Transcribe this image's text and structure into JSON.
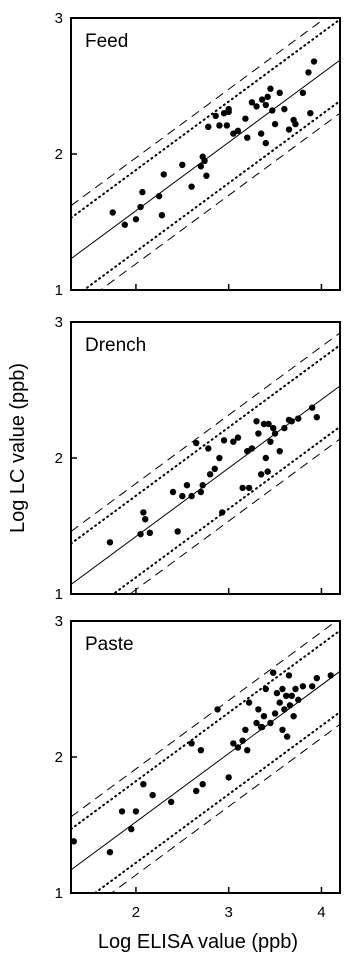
{
  "figure": {
    "ylabel": "Log LC value (ppb)",
    "xlabel": "Log ELISA value (ppb)"
  },
  "chart_data": [
    {
      "type": "scatter",
      "title": "Feed",
      "xlim": [
        1.3,
        4.2
      ],
      "ylim": [
        1,
        3
      ],
      "xticks": [
        2,
        3,
        4
      ],
      "yticks": [
        1,
        2,
        3
      ],
      "yticklabels": [
        "1",
        "2",
        "3"
      ],
      "xticklabels": [],
      "points": [
        [
          1.75,
          1.57
        ],
        [
          1.88,
          1.48
        ],
        [
          2.0,
          1.52
        ],
        [
          2.05,
          1.61
        ],
        [
          2.07,
          1.72
        ],
        [
          2.25,
          1.69
        ],
        [
          2.28,
          1.55
        ],
        [
          2.3,
          1.85
        ],
        [
          2.5,
          1.92
        ],
        [
          2.6,
          1.76
        ],
        [
          2.7,
          1.91
        ],
        [
          2.72,
          1.98
        ],
        [
          2.74,
          1.95
        ],
        [
          2.76,
          1.84
        ],
        [
          2.78,
          2.2
        ],
        [
          2.86,
          2.28
        ],
        [
          2.9,
          2.21
        ],
        [
          2.95,
          2.3
        ],
        [
          2.98,
          2.21
        ],
        [
          3.0,
          2.33
        ],
        [
          3.05,
          2.15
        ],
        [
          3.1,
          2.17
        ],
        [
          3.18,
          2.26
        ],
        [
          3.2,
          2.12
        ],
        [
          3.3,
          2.35
        ],
        [
          3.35,
          2.15
        ],
        [
          3.36,
          2.4
        ],
        [
          3.4,
          2.08
        ],
        [
          3.42,
          2.42
        ],
        [
          3.45,
          2.48
        ],
        [
          3.47,
          2.32
        ],
        [
          3.5,
          2.22
        ],
        [
          3.55,
          2.45
        ],
        [
          3.6,
          2.33
        ],
        [
          3.65,
          2.18
        ],
        [
          3.7,
          2.25
        ],
        [
          3.72,
          2.22
        ],
        [
          3.8,
          2.45
        ],
        [
          3.86,
          2.6
        ],
        [
          3.88,
          2.3
        ],
        [
          3.92,
          2.68
        ],
        [
          3.4,
          2.36
        ],
        [
          3.25,
          2.38
        ],
        [
          3.0,
          2.31
        ]
      ],
      "regression_line": [
        [
          1.3,
          1.23
        ],
        [
          4.2,
          2.69
        ]
      ],
      "inner_bands": [
        [
          [
            1.3,
            1.53
          ],
          [
            4.2,
            2.99
          ]
        ],
        [
          [
            1.3,
            0.93
          ],
          [
            4.2,
            2.39
          ]
        ]
      ],
      "outer_bands": [
        [
          [
            1.3,
            1.62
          ],
          [
            4.2,
            3.08
          ]
        ],
        [
          [
            1.3,
            0.84
          ],
          [
            4.2,
            2.3
          ]
        ]
      ]
    },
    {
      "type": "scatter",
      "title": "Drench",
      "xlim": [
        1.3,
        4.2
      ],
      "ylim": [
        1,
        3
      ],
      "xticks": [
        2,
        3,
        4
      ],
      "yticks": [
        1,
        2,
        3
      ],
      "yticklabels": [
        "1",
        "2",
        "3"
      ],
      "xticklabels": [],
      "points": [
        [
          1.72,
          1.38
        ],
        [
          2.05,
          1.44
        ],
        [
          2.08,
          1.6
        ],
        [
          2.1,
          1.55
        ],
        [
          2.15,
          1.45
        ],
        [
          2.4,
          1.75
        ],
        [
          2.45,
          1.46
        ],
        [
          2.5,
          1.72
        ],
        [
          2.55,
          1.8
        ],
        [
          2.6,
          1.72
        ],
        [
          2.65,
          2.11
        ],
        [
          2.7,
          1.75
        ],
        [
          2.72,
          1.8
        ],
        [
          2.78,
          2.07
        ],
        [
          2.8,
          1.88
        ],
        [
          2.85,
          1.92
        ],
        [
          2.9,
          2.0
        ],
        [
          2.93,
          1.6
        ],
        [
          2.95,
          2.13
        ],
        [
          3.05,
          2.12
        ],
        [
          3.1,
          2.15
        ],
        [
          3.15,
          1.78
        ],
        [
          3.2,
          2.05
        ],
        [
          3.22,
          1.78
        ],
        [
          3.25,
          2.07
        ],
        [
          3.3,
          2.27
        ],
        [
          3.32,
          2.18
        ],
        [
          3.35,
          1.88
        ],
        [
          3.38,
          2.25
        ],
        [
          3.4,
          2.0
        ],
        [
          3.42,
          1.9
        ],
        [
          3.43,
          2.25
        ],
        [
          3.45,
          2.12
        ],
        [
          3.48,
          2.22
        ],
        [
          3.5,
          2.18
        ],
        [
          3.55,
          2.05
        ],
        [
          3.6,
          2.22
        ],
        [
          3.65,
          2.28
        ],
        [
          3.68,
          2.27
        ],
        [
          3.9,
          2.37
        ],
        [
          3.95,
          2.3
        ],
        [
          3.75,
          2.29
        ]
      ],
      "regression_line": [
        [
          1.3,
          1.07
        ],
        [
          4.2,
          2.53
        ]
      ],
      "inner_bands": [
        [
          [
            1.3,
            1.37
          ],
          [
            4.2,
            2.83
          ]
        ],
        [
          [
            1.3,
            0.77
          ],
          [
            4.2,
            2.23
          ]
        ]
      ],
      "outer_bands": [
        [
          [
            1.3,
            1.46
          ],
          [
            4.2,
            2.92
          ]
        ],
        [
          [
            1.3,
            0.68
          ],
          [
            4.2,
            2.14
          ]
        ]
      ]
    },
    {
      "type": "scatter",
      "title": "Paste",
      "xlim": [
        1.3,
        4.2
      ],
      "ylim": [
        1,
        3
      ],
      "xticks": [
        2,
        3,
        4
      ],
      "yticks": [
        1,
        2,
        3
      ],
      "yticklabels": [
        "1",
        "2",
        "3"
      ],
      "xticklabels": [
        "2",
        "3",
        "4"
      ],
      "points": [
        [
          1.33,
          1.38
        ],
        [
          1.72,
          1.3
        ],
        [
          1.85,
          1.6
        ],
        [
          1.95,
          1.47
        ],
        [
          2.0,
          1.6
        ],
        [
          2.08,
          1.8
        ],
        [
          2.18,
          1.72
        ],
        [
          2.38,
          1.67
        ],
        [
          2.6,
          2.1
        ],
        [
          2.65,
          1.75
        ],
        [
          2.7,
          2.05
        ],
        [
          2.72,
          1.8
        ],
        [
          2.88,
          2.35
        ],
        [
          3.0,
          1.85
        ],
        [
          3.05,
          2.1
        ],
        [
          3.1,
          2.07
        ],
        [
          3.15,
          2.12
        ],
        [
          3.18,
          2.2
        ],
        [
          3.2,
          2.05
        ],
        [
          3.22,
          2.4
        ],
        [
          3.3,
          2.25
        ],
        [
          3.32,
          2.35
        ],
        [
          3.35,
          2.22
        ],
        [
          3.38,
          2.3
        ],
        [
          3.4,
          2.5
        ],
        [
          3.45,
          2.25
        ],
        [
          3.48,
          2.62
        ],
        [
          3.5,
          2.32
        ],
        [
          3.52,
          2.47
        ],
        [
          3.55,
          2.4
        ],
        [
          3.58,
          2.5
        ],
        [
          3.6,
          2.35
        ],
        [
          3.62,
          2.45
        ],
        [
          3.65,
          2.6
        ],
        [
          3.68,
          2.45
        ],
        [
          3.7,
          2.3
        ],
        [
          3.72,
          2.5
        ],
        [
          3.75,
          2.42
        ],
        [
          3.8,
          2.52
        ],
        [
          3.9,
          2.52
        ],
        [
          3.95,
          2.58
        ],
        [
          4.1,
          2.6
        ],
        [
          3.63,
          2.15
        ],
        [
          3.58,
          2.2
        ],
        [
          3.36,
          2.22
        ],
        [
          3.66,
          2.38
        ]
      ],
      "regression_line": [
        [
          1.3,
          1.17
        ],
        [
          4.2,
          2.63
        ]
      ],
      "inner_bands": [
        [
          [
            1.3,
            1.47
          ],
          [
            4.2,
            2.93
          ]
        ],
        [
          [
            1.3,
            0.87
          ],
          [
            4.2,
            2.33
          ]
        ]
      ],
      "outer_bands": [
        [
          [
            1.3,
            1.56
          ],
          [
            4.2,
            3.02
          ]
        ],
        [
          [
            1.3,
            0.78
          ],
          [
            4.2,
            2.24
          ]
        ]
      ]
    }
  ]
}
